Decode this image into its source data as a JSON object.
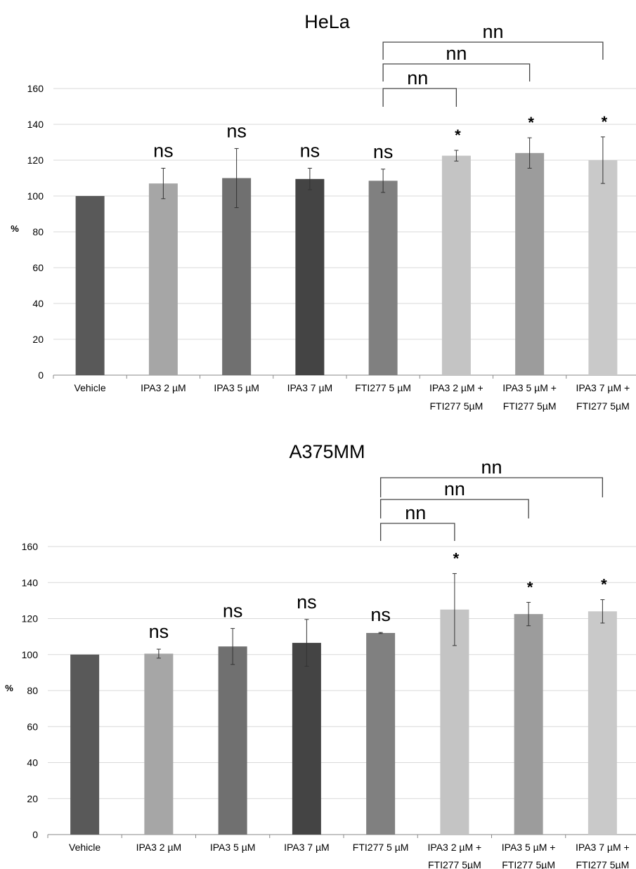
{
  "chart_data": [
    {
      "type": "bar",
      "title": "HeLa",
      "ylabel": "%",
      "ylim": [
        0,
        160
      ],
      "yticks": [
        0,
        20,
        40,
        60,
        80,
        100,
        120,
        140,
        160
      ],
      "grid": true,
      "categories": [
        [
          "Vehicle"
        ],
        [
          "IPA3 2 µM"
        ],
        [
          "IPA3 5 µM"
        ],
        [
          "IPA3 7 µM"
        ],
        [
          "FTI277 5 µM"
        ],
        [
          "IPA3 2 µM +",
          "FTI277 5µM"
        ],
        [
          "IPA3 5 µM +",
          "FTI277 5µM"
        ],
        [
          "IPA3 7 µM +",
          "FTI277 5µM"
        ]
      ],
      "values": [
        100,
        107,
        110,
        109.5,
        108.5,
        122.5,
        124,
        120
      ],
      "errors": [
        0,
        8.5,
        16.5,
        6,
        6.5,
        3,
        8.5,
        13
      ],
      "colors": [
        "#595959",
        "#a6a6a6",
        "#707070",
        "#444444",
        "#808080",
        "#c4c4c4",
        "#9c9c9c",
        "#c9c9c9"
      ],
      "annotations": [
        "",
        "ns",
        "ns",
        "ns",
        "ns",
        "*",
        "*",
        "*"
      ],
      "comparisons": [
        {
          "from": 4,
          "to": 5,
          "label": "nn"
        },
        {
          "from": 4,
          "to": 6,
          "label": "nn"
        },
        {
          "from": 4,
          "to": 7,
          "label": "nn"
        }
      ]
    },
    {
      "type": "bar",
      "title": "A375MM",
      "ylabel": "%",
      "ylim": [
        0,
        160
      ],
      "yticks": [
        0,
        20,
        40,
        60,
        80,
        100,
        120,
        140,
        160
      ],
      "grid": true,
      "categories": [
        [
          "Vehicle"
        ],
        [
          "IPA3 2 µM"
        ],
        [
          "IPA3 5 µM"
        ],
        [
          "IPA3 7 µM"
        ],
        [
          "FTI277 5 µM"
        ],
        [
          "IPA3 2 µM +",
          "FTI277 5µM"
        ],
        [
          "IPA3 5 µM +",
          "FTI277 5µM"
        ],
        [
          "IPA3 7 µM +",
          "FTI277 5µM"
        ]
      ],
      "values": [
        100,
        100.5,
        104.5,
        106.5,
        112,
        125,
        122.5,
        124
      ],
      "errors": [
        0,
        2.5,
        10,
        13,
        0.3,
        20,
        6.5,
        6.5
      ],
      "colors": [
        "#595959",
        "#a6a6a6",
        "#707070",
        "#444444",
        "#808080",
        "#c4c4c4",
        "#9c9c9c",
        "#c9c9c9"
      ],
      "annotations": [
        "",
        "ns",
        "ns",
        "ns",
        "ns",
        "*",
        "*",
        "*"
      ],
      "comparisons": [
        {
          "from": 4,
          "to": 5,
          "label": "nn"
        },
        {
          "from": 4,
          "to": 6,
          "label": "nn"
        },
        {
          "from": 4,
          "to": 7,
          "label": "nn"
        }
      ]
    }
  ]
}
